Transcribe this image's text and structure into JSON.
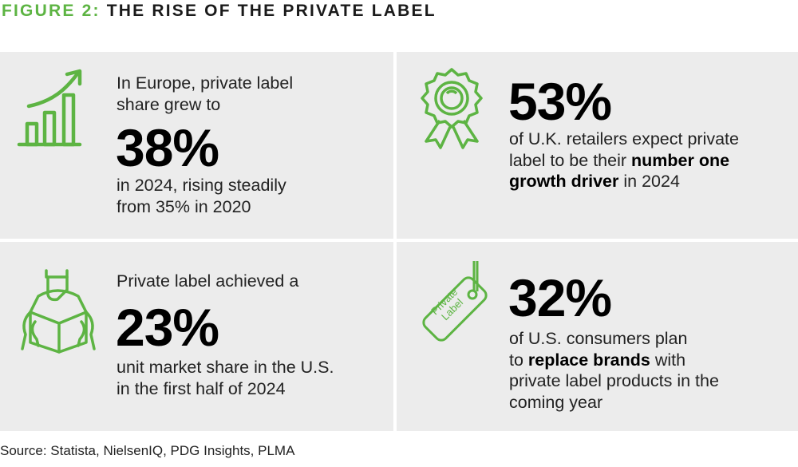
{
  "title": {
    "prefix": "FIGURE 2:",
    "text": "THE RISE OF THE PRIVATE LABEL"
  },
  "colors": {
    "accent": "#5db443",
    "panel": "#ececec"
  },
  "stats": [
    {
      "icon": "growth-chart-icon",
      "pre_lines": [
        "In Europe, private label",
        "share grew to"
      ],
      "value": "38%",
      "post_lines": [
        "in 2024, rising steadily",
        "from 35% in 2020"
      ]
    },
    {
      "icon": "award-ribbon-icon",
      "value": "53%",
      "line1": "of U.K. retailers expect private",
      "line2_a": "label to be their ",
      "line2_b": "number one",
      "line3_a": "growth driver",
      "line3_b": " in 2024"
    },
    {
      "icon": "hands-box-icon",
      "pre_lines": [
        "Private label achieved a"
      ],
      "value": "23%",
      "post_lines": [
        "unit market share in the U.S.",
        "in the first half of 2024"
      ]
    },
    {
      "icon": "price-tag-icon",
      "tag_text": [
        "Private",
        "Label"
      ],
      "value": "32%",
      "line1": "of U.S. consumers plan",
      "line2_a": "to ",
      "line2_b": "replace brands",
      "line2_c": " with",
      "line3": "private label products in the",
      "line4": "coming year"
    }
  ],
  "source": "Source: Statista, NielsenIQ, PDG Insights, PLMA"
}
